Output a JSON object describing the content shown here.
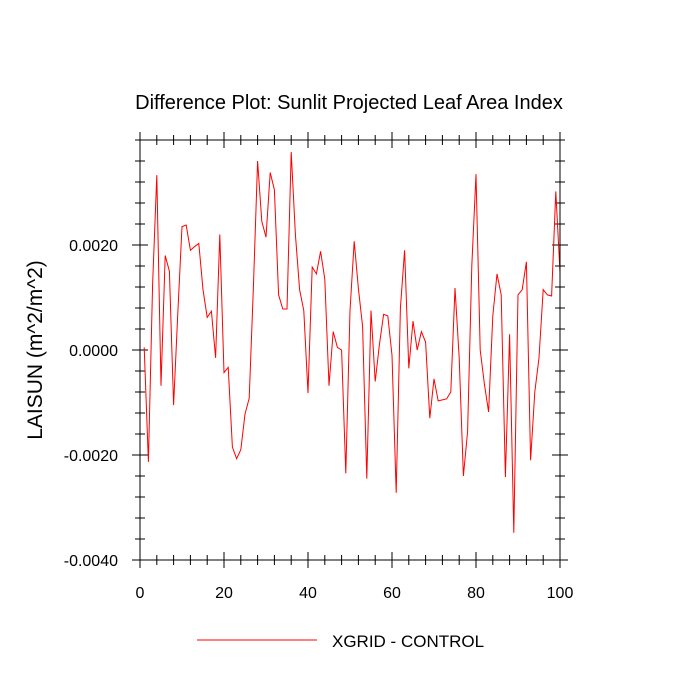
{
  "chart_data": {
    "type": "line",
    "title": "Difference Plot: Sunlit Projected Leaf Area Index",
    "xlabel": "",
    "ylabel": "LAISUN  (m^2/m^2)",
    "xlim": [
      0,
      100
    ],
    "ylim": [
      -0.004,
      0.004
    ],
    "x_ticks": [
      0,
      20,
      40,
      60,
      80,
      100
    ],
    "x_tick_labels": [
      "0",
      "20",
      "40",
      "60",
      "80",
      "100"
    ],
    "y_ticks": [
      -0.004,
      -0.002,
      0.0,
      0.002
    ],
    "y_tick_labels": [
      "-0.0040",
      "-0.0020",
      "0.0000",
      "0.0020"
    ],
    "legend_position": "bottom-center",
    "series": [
      {
        "name": "XGRID - CONTROL",
        "color": "#ff0000",
        "x": [
          1,
          2,
          3,
          4,
          5,
          6,
          7,
          8,
          9,
          10,
          11,
          12,
          13,
          14,
          15,
          16,
          17,
          18,
          19,
          20,
          21,
          22,
          23,
          24,
          25,
          26,
          27,
          28,
          29,
          30,
          31,
          32,
          33,
          34,
          35,
          36,
          37,
          38,
          39,
          40,
          41,
          42,
          43,
          44,
          45,
          46,
          47,
          48,
          49,
          50,
          51,
          52,
          53,
          54,
          55,
          56,
          57,
          58,
          59,
          60,
          61,
          62,
          63,
          64,
          65,
          66,
          67,
          68,
          69,
          70,
          71,
          72,
          73,
          74,
          75,
          76,
          77,
          78,
          79,
          80,
          81,
          82,
          83,
          84,
          85,
          86,
          87,
          88,
          89,
          90,
          91,
          92,
          93,
          94,
          95,
          96,
          97,
          98,
          99,
          100
        ],
        "values": [
          5e-05,
          -0.00213,
          0.00125,
          0.00333,
          -0.00068,
          0.0018,
          0.0015,
          -0.00105,
          0.0007,
          0.00235,
          0.00238,
          0.0019,
          0.00197,
          0.00203,
          0.00115,
          0.00062,
          0.00074,
          -0.00015,
          0.0022,
          -0.00043,
          -0.00033,
          -0.00185,
          -0.00207,
          -0.0019,
          -0.00122,
          -0.00092,
          0.0012,
          0.0036,
          0.00245,
          0.00215,
          0.00338,
          0.00305,
          0.00105,
          0.00078,
          0.00078,
          0.00377,
          0.0022,
          0.00115,
          0.00075,
          -0.00082,
          0.00158,
          0.00145,
          0.00188,
          0.00135,
          -0.00068,
          0.00035,
          5e-05,
          0.0,
          -0.00235,
          0.00075,
          0.00207,
          0.00117,
          0.00045,
          -0.00245,
          0.00075,
          -0.0006,
          0.0001,
          0.00068,
          0.00065,
          -0.0001,
          -0.00272,
          0.0008,
          0.0019,
          -0.00035,
          0.00055,
          0.0,
          0.00035,
          0.00015,
          -0.0013,
          -0.00055,
          -0.00097,
          -0.00095,
          -0.00093,
          -0.0008,
          0.00118,
          -0.00015,
          -0.0024,
          -0.00155,
          0.0016,
          0.00335,
          0.0,
          -0.00065,
          -0.00118,
          0.00065,
          0.00145,
          0.00105,
          -0.00242,
          0.0003,
          -0.00348,
          0.00105,
          0.00115,
          0.00168,
          -0.0021,
          -0.0008,
          -0.00015,
          0.00115,
          0.00105,
          0.00103,
          0.00302,
          0.00148
        ]
      }
    ]
  }
}
